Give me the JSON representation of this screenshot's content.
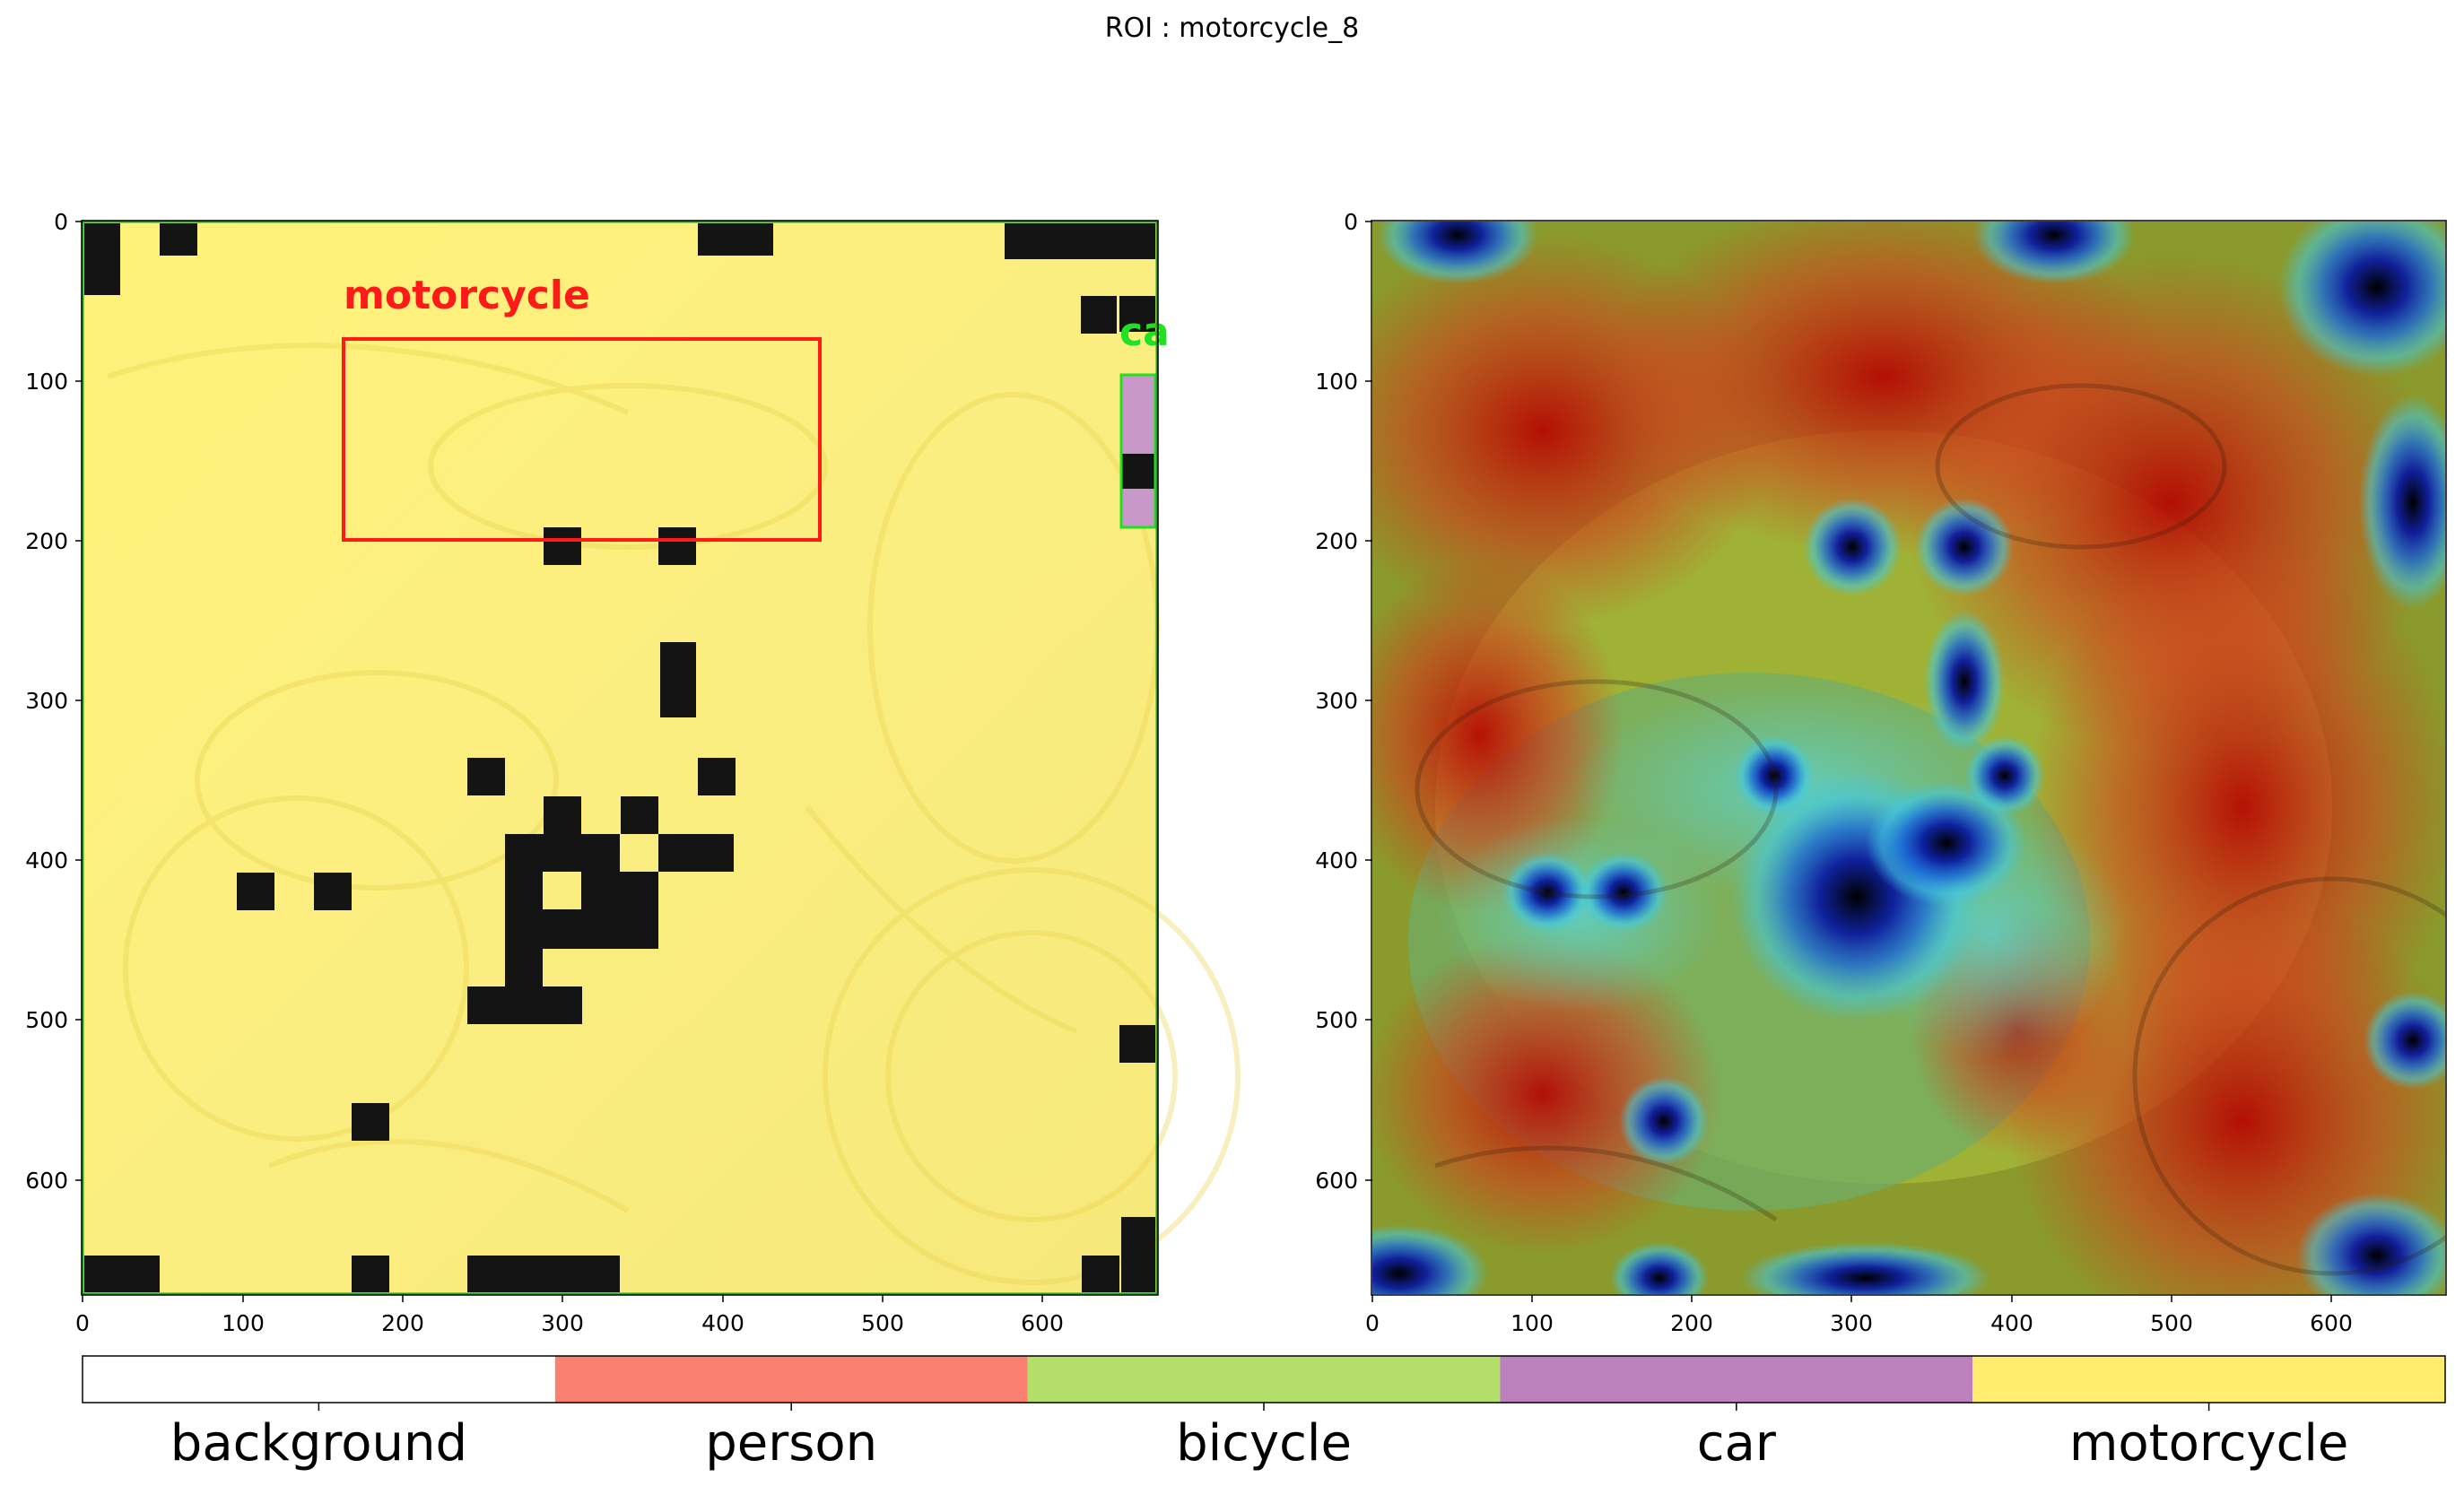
{
  "figure": {
    "title": "ROI : motorcycle_8"
  },
  "left_panel": {
    "x_ticks": [
      "0",
      "100",
      "200",
      "300",
      "400",
      "500",
      "600"
    ],
    "y_ticks": [
      "0",
      "100",
      "200",
      "300",
      "400",
      "500",
      "600"
    ],
    "annotations": [
      {
        "label": "motorcycle",
        "color": "#ff1a1a"
      },
      {
        "label": "ca",
        "color": "#22e022"
      }
    ]
  },
  "right_panel": {
    "x_ticks": [
      "0",
      "100",
      "200",
      "300",
      "400",
      "500",
      "600"
    ],
    "y_ticks": [
      "0",
      "100",
      "200",
      "300",
      "400",
      "500",
      "600"
    ]
  },
  "colorbar": {
    "classes": [
      {
        "label": "background",
        "color": "#ffffff"
      },
      {
        "label": "person",
        "color": "#fa8072"
      },
      {
        "label": "bicycle",
        "color": "#b3de69"
      },
      {
        "label": "car",
        "color": "#bc80bd"
      },
      {
        "label": "motorcycle",
        "color": "#ffed6f"
      }
    ]
  }
}
